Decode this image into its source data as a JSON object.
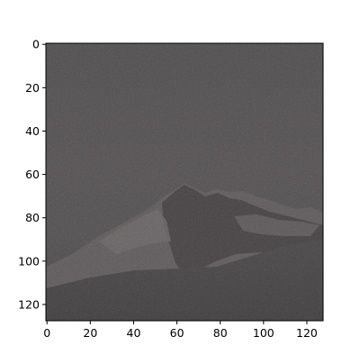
{
  "image": {
    "description": "noisy grayscale image of a rocky mountain ridge beneath a dark overcast sky",
    "colors": {
      "sky": "#5b5859",
      "sky_light": "#666263",
      "ground_dark": "#3a3839",
      "snow_light": "#8d8788",
      "rock_dark": "#2a2626",
      "axis": "#000000"
    }
  },
  "axes": {
    "x_range": [
      0,
      127
    ],
    "y_range": [
      0,
      127
    ],
    "x_ticks": [
      0,
      20,
      40,
      60,
      80,
      100,
      120
    ],
    "y_ticks": [
      0,
      20,
      40,
      60,
      80,
      100,
      120
    ],
    "grid": false
  }
}
